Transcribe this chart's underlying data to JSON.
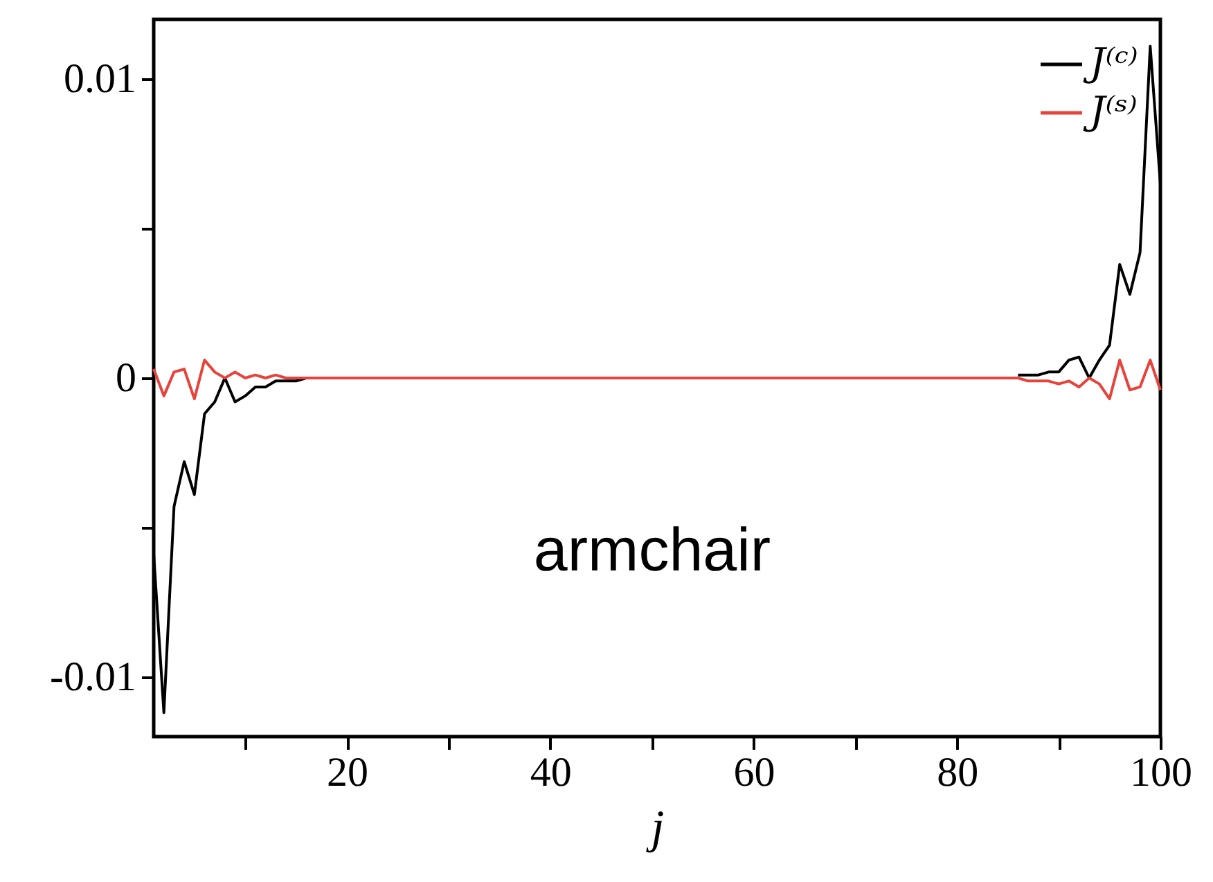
{
  "chart_data": {
    "type": "line",
    "xlabel": "j",
    "x": [
      1,
      2,
      3,
      4,
      5,
      6,
      7,
      8,
      9,
      10,
      11,
      12,
      13,
      14,
      15,
      16,
      17,
      18,
      19,
      20,
      21,
      22,
      23,
      24,
      25,
      26,
      27,
      28,
      29,
      30,
      31,
      32,
      33,
      34,
      35,
      36,
      37,
      38,
      39,
      40,
      41,
      42,
      43,
      44,
      45,
      46,
      47,
      48,
      49,
      50,
      51,
      52,
      53,
      54,
      55,
      56,
      57,
      58,
      59,
      60,
      61,
      62,
      63,
      64,
      65,
      66,
      67,
      68,
      69,
      70,
      71,
      72,
      73,
      74,
      75,
      76,
      77,
      78,
      79,
      80,
      81,
      82,
      83,
      84,
      85,
      86,
      87,
      88,
      89,
      90,
      91,
      92,
      93,
      94,
      95,
      96,
      97,
      98,
      99,
      100
    ],
    "series": [
      {
        "name": "J⁽ᶜ⁾",
        "color": "#000000",
        "values": [
          -0.0059,
          -0.0112,
          -0.0043,
          -0.0028,
          -0.0039,
          -0.0012,
          -0.0008,
          0,
          -0.0008,
          -0.0006,
          -0.0003,
          -0.0003,
          -0.0001,
          -0.0001,
          -0.0001,
          0,
          null,
          null,
          null,
          null,
          null,
          null,
          null,
          null,
          null,
          null,
          null,
          null,
          null,
          null,
          null,
          null,
          null,
          null,
          null,
          null,
          null,
          null,
          null,
          null,
          null,
          null,
          null,
          null,
          null,
          null,
          null,
          null,
          null,
          null,
          null,
          null,
          null,
          null,
          null,
          null,
          null,
          null,
          null,
          null,
          null,
          null,
          null,
          null,
          null,
          null,
          null,
          null,
          null,
          null,
          null,
          null,
          null,
          null,
          null,
          null,
          null,
          null,
          null,
          null,
          null,
          null,
          null,
          null,
          null,
          0.0001,
          0.0001,
          0.0001,
          0.0002,
          0.0002,
          0.0006,
          0.0007,
          0,
          0.0006,
          0.0011,
          0.0038,
          0.0028,
          0.0042,
          0.0111,
          0.0065
        ]
      },
      {
        "name": "J⁽ˢ⁾",
        "color": "#e8433a",
        "values": [
          0.0003,
          -0.0006,
          0.0002,
          0.0003,
          -0.0007,
          0.0006,
          0.0002,
          0,
          0.0002,
          0,
          0.0001,
          0,
          0.0001,
          0,
          0,
          0,
          0,
          0,
          0,
          0,
          0,
          0,
          0,
          0,
          0,
          0,
          0,
          0,
          0,
          0,
          0,
          0,
          0,
          0,
          0,
          0,
          0,
          0,
          0,
          0,
          0,
          0,
          0,
          0,
          0,
          0,
          0,
          0,
          0,
          0,
          0,
          0,
          0,
          0,
          0,
          0,
          0,
          0,
          0,
          0,
          0,
          0,
          0,
          0,
          0,
          0,
          0,
          0,
          0,
          0,
          0,
          0,
          0,
          0,
          0,
          0,
          0,
          0,
          0,
          0,
          0,
          0,
          0,
          0,
          0,
          0,
          -0.0001,
          -0.0001,
          -0.0001,
          -0.0002,
          -0.0001,
          -0.0003,
          0,
          -0.0002,
          -0.0007,
          0.0006,
          -0.0004,
          -0.0003,
          0.0006,
          -0.0004
        ]
      }
    ],
    "xlim": [
      1,
      100
    ],
    "xticks": [
      {
        "value": 10,
        "label": null
      },
      20,
      {
        "value": 30,
        "label": null
      },
      40,
      {
        "value": 50,
        "label": null
      },
      60,
      {
        "value": 70,
        "label": null
      },
      80,
      {
        "value": 90,
        "label": null
      },
      100
    ],
    "ylim": [
      -0.012,
      0.012
    ],
    "yticks": [
      {
        "value": -0.01,
        "label": "-0.01"
      },
      {
        "value": -0.005,
        "label": null
      },
      0,
      {
        "value": 0.005,
        "label": null
      },
      0.01
    ],
    "annotations": [
      "armchair"
    ],
    "legend": "top right",
    "grid": false,
    "marker": "none",
    "line_style": "solid"
  }
}
